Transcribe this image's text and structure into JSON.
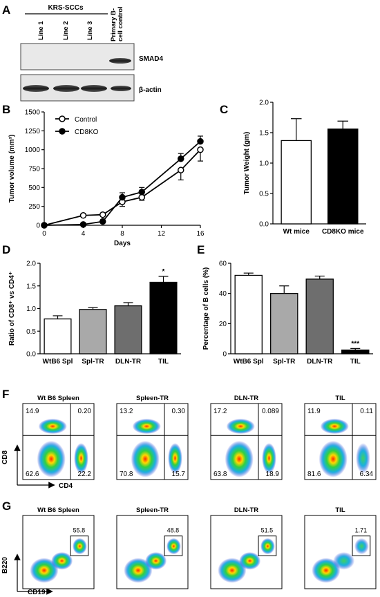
{
  "panels": {
    "A": {
      "label": "A",
      "header": "KRS-SCCs",
      "lanes": [
        "Line 1",
        "Line 2",
        "Line 3",
        "Primary B-cell control"
      ],
      "blots": [
        "SMAD4",
        "β-actin"
      ]
    },
    "B": {
      "label": "B"
    },
    "C": {
      "label": "C"
    },
    "D": {
      "label": "D"
    },
    "E": {
      "label": "E"
    },
    "F": {
      "label": "F",
      "samples": [
        "Wt B6 Spleen",
        "Spleen-TR",
        "DLN-TR",
        "TIL"
      ],
      "quadrants": [
        {
          "ul": "14.9",
          "ur": "0.20",
          "ll": "62.6",
          "lr": "22.2"
        },
        {
          "ul": "13.2",
          "ur": "0.30",
          "ll": "70.8",
          "lr": "15.7"
        },
        {
          "ul": "17.2",
          "ur": "0.089",
          "ll": "63.8",
          "lr": "18.9"
        },
        {
          "ul": "11.9",
          "ur": "0.11",
          "ll": "81.6",
          "lr": "6.34"
        }
      ],
      "ylabel": "CD8",
      "xlabel": "CD4"
    },
    "G": {
      "label": "G",
      "samples": [
        "Wt B6 Spleen",
        "Spleen-TR",
        "DLN-TR",
        "TIL"
      ],
      "gates": [
        "55.8",
        "48.8",
        "51.5",
        "1.71"
      ],
      "ylabel": "B220",
      "xlabel": "CD19"
    }
  },
  "chart_data": [
    {
      "type": "line",
      "panel": "B",
      "xlabel": "Days",
      "ylabel": "Tumor volume (mm³)",
      "xlim": [
        0,
        16
      ],
      "ylim": [
        0,
        1500
      ],
      "xticks": [
        0,
        4,
        8,
        12,
        16
      ],
      "yticks": [
        0,
        250,
        500,
        750,
        1000,
        1250,
        1500
      ],
      "legend_position": "top-left",
      "series": [
        {
          "name": "Control",
          "marker": "open-circle",
          "x": [
            0,
            4,
            6,
            8,
            10,
            14,
            16
          ],
          "y": [
            0,
            130,
            140,
            310,
            370,
            730,
            1000
          ],
          "err": [
            0,
            10,
            10,
            60,
            40,
            130,
            150
          ]
        },
        {
          "name": "CD8KO",
          "marker": "filled-circle",
          "x": [
            0,
            4,
            6,
            8,
            10,
            14,
            16
          ],
          "y": [
            0,
            10,
            50,
            370,
            440,
            880,
            1110
          ],
          "err": [
            0,
            5,
            10,
            60,
            60,
            70,
            70
          ]
        }
      ]
    },
    {
      "type": "bar",
      "panel": "C",
      "categories": [
        "Wt mice",
        "CD8KO mice"
      ],
      "values": [
        1.37,
        1.56
      ],
      "err": [
        0.36,
        0.13
      ],
      "colors": [
        "#ffffff",
        "#000000"
      ],
      "ylabel": "Tumor Weight (gm)",
      "ylim": [
        0,
        2.0
      ],
      "yticks": [
        "0.0",
        "0.5",
        "1.0",
        "1.5",
        "2.0"
      ]
    },
    {
      "type": "bar",
      "panel": "D",
      "categories": [
        "WtB6 Spl",
        "Spl-TR",
        "DLN-TR",
        "TIL"
      ],
      "values": [
        0.77,
        0.98,
        1.06,
        1.58
      ],
      "err": [
        0.07,
        0.04,
        0.07,
        0.13
      ],
      "colors": [
        "#ffffff",
        "#a9a9a9",
        "#6e6e6e",
        "#000000"
      ],
      "annotations": [
        "",
        "",
        "",
        "*"
      ],
      "ylabel": "Ratio of CD8⁺ vs CD4⁺",
      "ylim": [
        0,
        2.0
      ],
      "yticks": [
        "0.0",
        "0.5",
        "1.0",
        "1.5",
        "2.0"
      ]
    },
    {
      "type": "bar",
      "panel": "E",
      "categories": [
        "WtB6 Spl",
        "Spl-TR",
        "DLN-TR",
        "TIL"
      ],
      "values": [
        52,
        40,
        49.5,
        2.5
      ],
      "err": [
        1.5,
        5,
        2,
        1
      ],
      "colors": [
        "#ffffff",
        "#a9a9a9",
        "#6e6e6e",
        "#000000"
      ],
      "annotations": [
        "",
        "",
        "",
        "***"
      ],
      "ylabel": "Percentage of B cells (%)",
      "ylim": [
        0,
        60
      ],
      "yticks": [
        "0",
        "20",
        "40",
        "60"
      ]
    }
  ]
}
